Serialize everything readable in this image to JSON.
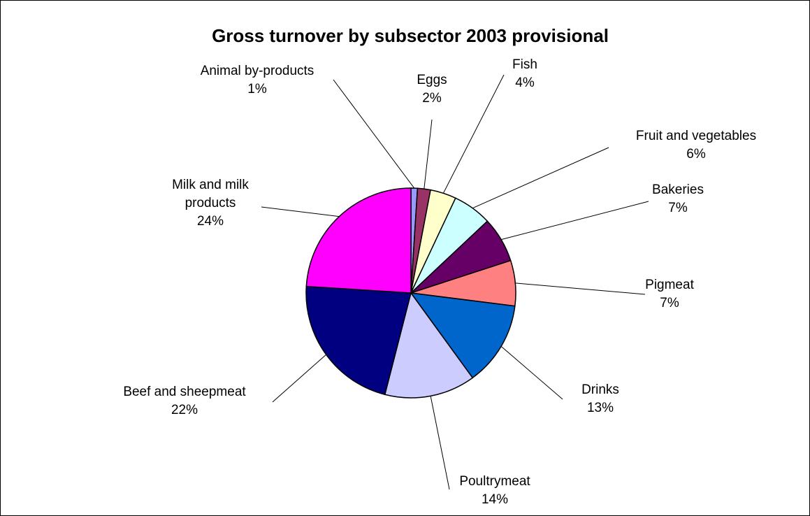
{
  "chart_data": {
    "type": "pie",
    "title": "Gross turnover by subsector 2003 provisional",
    "start_angle_deg": 0,
    "direction": "clockwise",
    "legend": "none",
    "slices": [
      {
        "name": "Animal by-products",
        "label_lines": [
          "Animal by-products"
        ],
        "value": 1,
        "pct_label": "1%",
        "color": "#9999ff"
      },
      {
        "name": "Eggs",
        "label_lines": [
          "Eggs"
        ],
        "value": 2,
        "pct_label": "2%",
        "color": "#993366"
      },
      {
        "name": "Fish",
        "label_lines": [
          "Fish"
        ],
        "value": 4,
        "pct_label": "4%",
        "color": "#ffffcc"
      },
      {
        "name": "Fruit and vegetables",
        "label_lines": [
          "Fruit and vegetables"
        ],
        "value": 6,
        "pct_label": "6%",
        "color": "#ccffff"
      },
      {
        "name": "Bakeries",
        "label_lines": [
          "Bakeries"
        ],
        "value": 7,
        "pct_label": "7%",
        "color": "#660066"
      },
      {
        "name": "Pigmeat",
        "label_lines": [
          "Pigmeat"
        ],
        "value": 7,
        "pct_label": "7%",
        "color": "#ff8080"
      },
      {
        "name": "Drinks",
        "label_lines": [
          "Drinks"
        ],
        "value": 13,
        "pct_label": "13%",
        "color": "#0066cc"
      },
      {
        "name": "Poultrymeat",
        "label_lines": [
          "Poultrymeat"
        ],
        "value": 14,
        "pct_label": "14%",
        "color": "#ccccff"
      },
      {
        "name": "Beef and sheepmeat",
        "label_lines": [
          "Beef and sheepmeat"
        ],
        "value": 22,
        "pct_label": "22%",
        "color": "#000080"
      },
      {
        "name": "Milk and milk products",
        "label_lines": [
          "Milk and milk",
          "products"
        ],
        "value": 24,
        "pct_label": "24%",
        "color": "#ff00ff"
      }
    ]
  }
}
